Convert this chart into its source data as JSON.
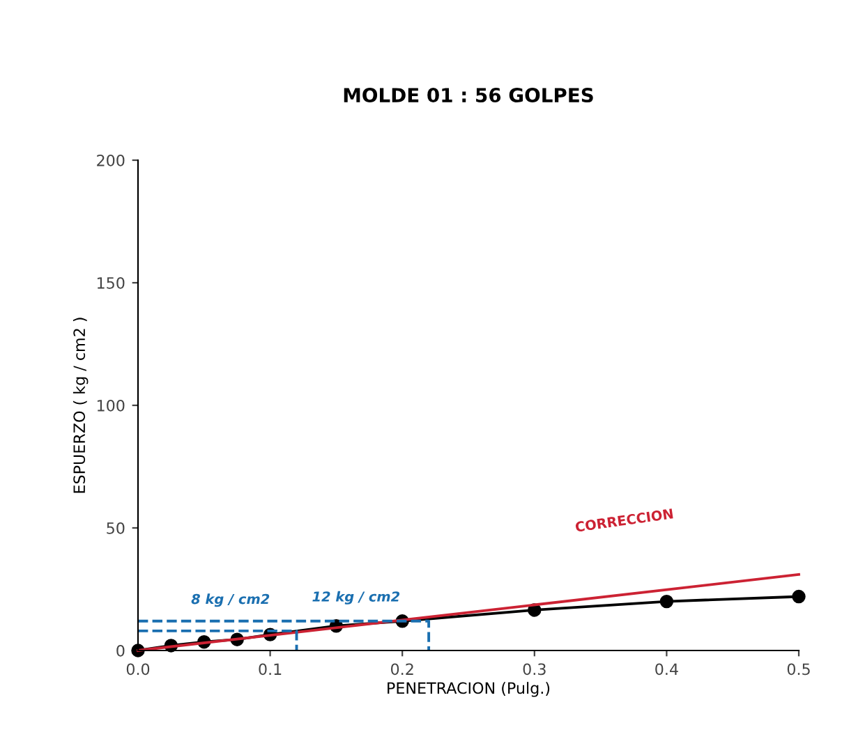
{
  "chart_data": {
    "type": "line",
    "title": "MOLDE 01 : 56 GOLPES",
    "xlabel": "PENETRACION (Pulg.)",
    "ylabel": "ESPUERZO ( kg / cm2 )",
    "xlim": [
      0,
      0.5
    ],
    "ylim": [
      0,
      200
    ],
    "xticks": [
      {
        "value": 0,
        "label": "0.0"
      },
      {
        "value": 0.1,
        "label": "0.1"
      },
      {
        "value": 0.2,
        "label": "0.2"
      },
      {
        "value": 0.3,
        "label": "0.3"
      },
      {
        "value": 0.4,
        "label": "0.4"
      },
      {
        "value": 0.5,
        "label": "0.5"
      }
    ],
    "yticks": [
      0,
      50,
      100,
      150,
      200
    ],
    "grid": false,
    "legend": false,
    "series": [
      {
        "color": "#000000",
        "marker": "circle",
        "line_style": "solid",
        "x": [
          0,
          0.025,
          0.05,
          0.075,
          0.1,
          0.15,
          0.2,
          0.3,
          0.4,
          0.5
        ],
        "values": [
          0,
          2,
          3.5,
          4.5,
          6.5,
          10,
          12,
          16.5,
          20,
          22
        ]
      },
      {
        "name": "CORRECCION",
        "color": "#cc2233",
        "marker": "none",
        "line_style": "solid",
        "x": [
          0,
          0.5
        ],
        "values": [
          0,
          31
        ]
      },
      {
        "color": "#1a6fb0",
        "marker": "none",
        "line_style": "dashed",
        "x": [
          0,
          0.12,
          0.12
        ],
        "values": [
          8,
          8,
          0
        ]
      },
      {
        "color": "#1a6fb0",
        "marker": "none",
        "line_style": "dashed",
        "x": [
          0,
          0.22,
          0.22
        ],
        "values": [
          12,
          12,
          0
        ]
      }
    ],
    "annotations": [
      "8 kg / cm2",
      "12 kg / cm2"
    ]
  }
}
